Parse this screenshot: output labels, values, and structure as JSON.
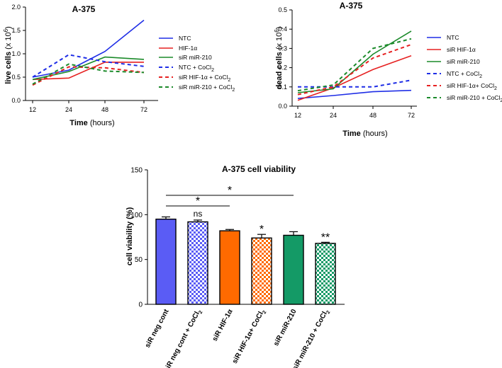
{
  "chart_data": [
    {
      "id": "live",
      "type": "line",
      "title": "A-375",
      "ylabel": "live cells",
      "ylabel_unit": "(x 10",
      "ylabel_exp": "6",
      "xlabel": "Time",
      "xlabel_unit": "(hours)",
      "x": [
        12,
        24,
        48,
        72
      ],
      "xticks": [
        "12",
        "24",
        "48",
        "72"
      ],
      "ylim": [
        0.0,
        2.0
      ],
      "yticks": [
        "0.0",
        "0.5",
        "1.0",
        "1.5",
        "2.0"
      ],
      "series": [
        {
          "name": "NTC",
          "name_sub": "",
          "name_tail": "",
          "color": "#1f2ee6",
          "dashed": false,
          "values": [
            0.5,
            0.65,
            1.05,
            1.72
          ]
        },
        {
          "name": "HIF-1α",
          "name_sub": "",
          "name_tail": "",
          "color": "#e62121",
          "dashed": false,
          "values": [
            0.45,
            0.48,
            0.82,
            0.82
          ]
        },
        {
          "name": "siR miR-210",
          "name_sub": "",
          "name_tail": "",
          "color": "#1b8a2a",
          "dashed": false,
          "values": [
            0.45,
            0.62,
            0.93,
            0.88
          ]
        },
        {
          "name": "NTC + CoCl",
          "name_sub": "2",
          "name_tail": "",
          "color": "#1f2ee6",
          "dashed": true,
          "values": [
            0.5,
            0.98,
            0.83,
            0.73
          ]
        },
        {
          "name": "siR HIF-1α + CoCl",
          "name_sub": "2",
          "name_tail": "",
          "color": "#e62121",
          "dashed": true,
          "values": [
            0.33,
            0.72,
            0.7,
            0.6
          ]
        },
        {
          "name": "siR miR-210 + CoCl",
          "name_sub": "2",
          "name_tail": "",
          "color": "#1b8a2a",
          "dashed": true,
          "values": [
            0.35,
            0.78,
            0.63,
            0.6
          ]
        }
      ]
    },
    {
      "id": "dead",
      "type": "line",
      "title": "A-375",
      "ylabel": "dead cells",
      "ylabel_unit": "(x 10",
      "ylabel_exp": "6",
      "xlabel": "Time",
      "xlabel_unit": "(hours)",
      "x": [
        12,
        24,
        48,
        72
      ],
      "xticks": [
        "12",
        "24",
        "48",
        "72"
      ],
      "ylim": [
        0.0,
        0.5
      ],
      "yticks": [
        "0.0",
        "0.1",
        "0.2",
        "0.3",
        "0.4",
        "0.5"
      ],
      "series": [
        {
          "name": "NTC",
          "name_sub": "",
          "name_tail": "",
          "color": "#1f2ee6",
          "dashed": false,
          "values": [
            0.04,
            0.055,
            0.075,
            0.082
          ]
        },
        {
          "name": "siR HIF-1α",
          "name_sub": "",
          "name_tail": "",
          "color": "#e62121",
          "dashed": false,
          "values": [
            0.03,
            0.095,
            0.19,
            0.262
          ]
        },
        {
          "name": "siR miR-210",
          "name_sub": "",
          "name_tail": "",
          "color": "#1b8a2a",
          "dashed": false,
          "values": [
            0.07,
            0.09,
            0.27,
            0.39
          ]
        },
        {
          "name": "NTC + CoCl",
          "name_sub": "2",
          "name_tail": "",
          "color": "#1f2ee6",
          "dashed": true,
          "values": [
            0.1,
            0.1,
            0.1,
            0.135
          ]
        },
        {
          "name": "siR HIF-1α+ CoCl",
          "name_sub": "2",
          "name_tail": "",
          "color": "#e62121",
          "dashed": true,
          "values": [
            0.06,
            0.1,
            0.25,
            0.32
          ]
        },
        {
          "name": "siR miR-210 + CoCl",
          "name_sub": "2",
          "name_tail": "",
          "color": "#1b8a2a",
          "dashed": true,
          "values": [
            0.08,
            0.11,
            0.3,
            0.35
          ]
        }
      ]
    },
    {
      "id": "viability",
      "type": "bar",
      "title": "A-375 cell viability",
      "ylabel": "cell viability (%)",
      "ylim": [
        0,
        150
      ],
      "yticks": [
        "0",
        "50",
        "100",
        "150"
      ],
      "categories": [
        {
          "label": "siR neg cont",
          "sub": "",
          "tail": ""
        },
        {
          "label": "siR neg cont + CoCl",
          "sub": "2",
          "tail": ""
        },
        {
          "label": "siR HIF-1α",
          "sub": "",
          "tail": ""
        },
        {
          "label": "siR HIF-1α+ CoCl",
          "sub": "2",
          "tail": ""
        },
        {
          "label": "siR miR-210",
          "sub": "",
          "tail": ""
        },
        {
          "label": "siR miR-210 + CoCl",
          "sub": "2",
          "tail": ""
        }
      ],
      "values": [
        95,
        92,
        82,
        74,
        77,
        68
      ],
      "errors": [
        2.5,
        2.0,
        1.5,
        4.0,
        4.0,
        1.2
      ],
      "colors": [
        "#5a5cf5",
        "#5a5cf5",
        "#ff6a00",
        "#ff6a00",
        "#149a66",
        "#149a66"
      ],
      "patterned": [
        false,
        true,
        false,
        true,
        false,
        true
      ],
      "bar_annotations": [
        "",
        "ns",
        "",
        "*",
        "",
        "**"
      ],
      "significance_lines": [
        {
          "from": 0,
          "to": 2,
          "label": "*"
        },
        {
          "from": 0,
          "to": 4,
          "label": "*"
        }
      ]
    }
  ]
}
